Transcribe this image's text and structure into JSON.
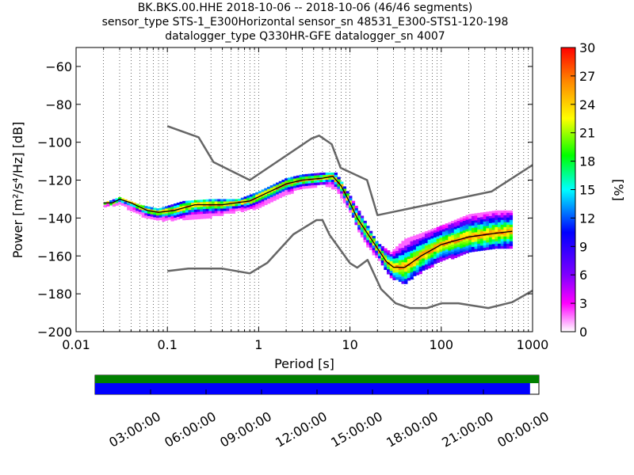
{
  "titles": {
    "line1": "BK.BKS.00.HHE   2018-10-06 -- 2018-10-06  (46/46 segments)",
    "line2": "sensor_type STS-1_E300Horizontal sensor_sn 48531_E300-STS1-120-198",
    "line3": "datalogger_type Q330HR-GFE datalogger_sn 4007"
  },
  "chart_data": [
    {
      "type": "heatmap",
      "xlabel": "Period [s]",
      "ylabel": "Power [m²/s⁴/Hz] [dB]",
      "xscale": "log",
      "xlim": [
        0.01,
        1000
      ],
      "ylim": [
        -200,
        -50
      ],
      "xticks": [
        0.01,
        0.1,
        1,
        10,
        100,
        1000
      ],
      "xtick_labels": [
        "0.01",
        "0.1",
        "1",
        "10",
        "100",
        "1000"
      ],
      "yticks": [
        -200,
        -180,
        -160,
        -140,
        -120,
        -100,
        -80,
        -60
      ],
      "ytick_labels": [
        "−200",
        "−180",
        "−160",
        "−140",
        "−120",
        "−100",
        "−80",
        "−60"
      ],
      "grid": "dotted vertical at log decade subdivisions",
      "colorbar": {
        "label": "[%]",
        "range": [
          0,
          30
        ],
        "ticks": [
          0,
          3,
          6,
          9,
          12,
          15,
          18,
          21,
          24,
          27,
          30
        ],
        "colormap": [
          "#ffffff",
          "#ff00ff",
          "#8800ff",
          "#0000ff",
          "#00ffff",
          "#00ff00",
          "#ffff00",
          "#ff8800",
          "#ff0000"
        ]
      },
      "series": [
        {
          "name": "new high noise model",
          "color": "#666666",
          "x": [
            0.1,
            0.22,
            0.32,
            0.8,
            3.8,
            4.6,
            6.3,
            7.9,
            15.4,
            20,
            354.8,
            1000
          ],
          "y": [
            -91.5,
            -97.4,
            -110.5,
            -120,
            -98,
            -96.5,
            -101,
            -113.5,
            -120,
            -138.5,
            -126,
            -112
          ]
        },
        {
          "name": "new low noise model",
          "color": "#666666",
          "x": [
            0.1,
            0.17,
            0.4,
            0.8,
            1.24,
            2.4,
            4.3,
            5,
            6,
            10,
            12,
            15.6,
            21.9,
            31.6,
            45,
            70,
            101,
            154,
            328,
            600,
            1000
          ],
          "y": [
            -168,
            -166.7,
            -166.7,
            -169.2,
            -163.7,
            -148.6,
            -141.1,
            -141.1,
            -149,
            -163.8,
            -166.2,
            -162.1,
            -177.5,
            -185,
            -187.5,
            -187.5,
            -185,
            -185,
            -187.5,
            -184.4,
            -178.3
          ]
        },
        {
          "name": "mode",
          "color": "#000000",
          "x": [
            0.02,
            0.025,
            0.03,
            0.04,
            0.06,
            0.08,
            0.12,
            0.2,
            0.4,
            0.8,
            1.2,
            2,
            3,
            5,
            6.5,
            8,
            10,
            12,
            15,
            20,
            25,
            30,
            40,
            60,
            100,
            200,
            400,
            600
          ],
          "y": [
            -132,
            -132,
            -130,
            -132,
            -136,
            -137,
            -136,
            -133,
            -133,
            -131,
            -127,
            -122,
            -120,
            -119,
            -118,
            -123,
            -132,
            -140,
            -147,
            -156,
            -163,
            -166,
            -166,
            -160,
            -154,
            -150,
            -148,
            -147
          ]
        }
      ],
      "band_rows": [
        {
          "x": 0.02,
          "lo": -134,
          "hi": -132
        },
        {
          "x": 0.03,
          "lo": -132,
          "hi": -129
        },
        {
          "x": 0.05,
          "lo": -138,
          "hi": -133
        },
        {
          "x": 0.08,
          "lo": -141,
          "hi": -135
        },
        {
          "x": 0.15,
          "lo": -140,
          "hi": -131
        },
        {
          "x": 0.3,
          "lo": -139,
          "hi": -130
        },
        {
          "x": 0.6,
          "lo": -136,
          "hi": -130
        },
        {
          "x": 1,
          "lo": -134,
          "hi": -126
        },
        {
          "x": 2,
          "lo": -127,
          "hi": -119
        },
        {
          "x": 3,
          "lo": -124,
          "hi": -117
        },
        {
          "x": 5,
          "lo": -122,
          "hi": -116
        },
        {
          "x": 7,
          "lo": -124,
          "hi": -116
        },
        {
          "x": 10,
          "lo": -136,
          "hi": -128
        },
        {
          "x": 14,
          "lo": -151,
          "hi": -140
        },
        {
          "x": 20,
          "lo": -161,
          "hi": -153
        },
        {
          "x": 28,
          "lo": -171,
          "hi": -158
        },
        {
          "x": 40,
          "lo": -174,
          "hi": -151
        },
        {
          "x": 60,
          "lo": -168,
          "hi": -148
        },
        {
          "x": 100,
          "lo": -162,
          "hi": -144
        },
        {
          "x": 200,
          "lo": -158,
          "hi": -138
        },
        {
          "x": 400,
          "lo": -156,
          "hi": -136
        },
        {
          "x": 600,
          "lo": -155,
          "hi": -136
        }
      ]
    },
    {
      "type": "bar",
      "title": "",
      "orientation": "horizontal",
      "series": [
        {
          "color": "#008000",
          "start": 0,
          "end": 1
        },
        {
          "color": "#0000ff",
          "start": 0,
          "end": 0.98
        }
      ],
      "xtick_labels": [
        "03:00:00",
        "06:00:00",
        "09:00:00",
        "12:00:00",
        "15:00:00",
        "18:00:00",
        "21:00:00",
        "00:00:00"
      ]
    }
  ]
}
